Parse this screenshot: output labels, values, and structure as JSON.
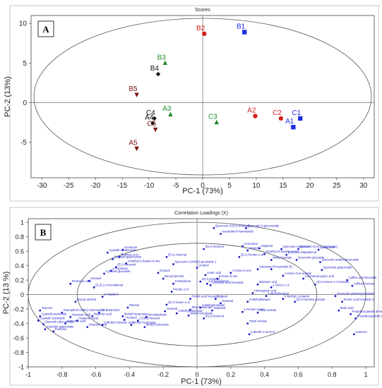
{
  "chart_data": [
    {
      "type": "scatter",
      "panel_label": "A",
      "title": "Scores",
      "xlabel": "PC-1 (73%)",
      "ylabel": "PC-2 (13%)",
      "xlim": [
        -32,
        32
      ],
      "ylim": [
        -9.5,
        11
      ],
      "xticks": [
        -30,
        -25,
        -20,
        -15,
        -10,
        -5,
        0,
        5,
        10,
        15,
        20,
        25,
        30
      ],
      "yticks": [
        -5,
        0,
        5,
        10
      ],
      "points": [
        {
          "label": "B1",
          "x": 7.8,
          "y": 8.9,
          "color": "#1f2ee0",
          "marker": "square"
        },
        {
          "label": "B2",
          "x": 0.3,
          "y": 8.7,
          "color": "#d42020",
          "marker": "circle"
        },
        {
          "label": "B3",
          "x": -7.0,
          "y": 5.0,
          "color": "#1e8a2a",
          "marker": "triangle"
        },
        {
          "label": "B4",
          "x": -8.3,
          "y": 3.6,
          "color": "#111111",
          "marker": "diamond"
        },
        {
          "label": "B5",
          "x": -12.3,
          "y": 1.0,
          "color": "#7a1010",
          "marker": "triangle-down"
        },
        {
          "label": "A3",
          "x": -6.0,
          "y": -1.5,
          "color": "#1e8a2a",
          "marker": "triangle"
        },
        {
          "label": "C3",
          "x": 2.6,
          "y": -2.5,
          "color": "#1e8a2a",
          "marker": "triangle"
        },
        {
          "label": "C4",
          "x": -9.0,
          "y": -2.0,
          "color": "#111111",
          "marker": "diamond"
        },
        {
          "label": "A4",
          "x": -9.3,
          "y": -2.6,
          "color": "#111111",
          "marker": "diamond"
        },
        {
          "label": "C5",
          "x": -8.8,
          "y": -3.4,
          "color": "#7a1010",
          "marker": "triangle-down"
        },
        {
          "label": "A5",
          "x": -12.3,
          "y": -5.8,
          "color": "#7a1010",
          "marker": "triangle-down"
        },
        {
          "label": "A2",
          "x": 9.8,
          "y": -1.7,
          "color": "#d42020",
          "marker": "circle"
        },
        {
          "label": "C2",
          "x": 14.6,
          "y": -2.0,
          "color": "#d42020",
          "marker": "circle"
        },
        {
          "label": "C1",
          "x": 18.2,
          "y": -2.0,
          "color": "#1f2ee0",
          "marker": "square"
        },
        {
          "label": "A1",
          "x": 16.9,
          "y": -3.1,
          "color": "#1f2ee0",
          "marker": "square"
        }
      ]
    },
    {
      "type": "scatter",
      "panel_label": "B",
      "title": "Correlation Loadings (X)",
      "xlabel": "PC-1 (73%)",
      "ylabel": "PC-2 (13 %)",
      "xlim": [
        -1.0,
        1.05
      ],
      "ylim": [
        -1.0,
        1.05
      ],
      "xticks": [
        -1,
        -0.8,
        -0.6,
        -0.4,
        -0.2,
        0,
        0.2,
        0.4,
        0.6,
        0.8,
        1
      ],
      "yticks": [
        -1,
        -0.8,
        -0.6,
        -0.4,
        -0.2,
        0,
        0.2,
        0.4,
        0.6,
        0.8,
        1
      ],
      "ellipses": [
        {
          "rx": 1.0,
          "ry": 1.0
        },
        {
          "rx": 0.71,
          "ry": 0.71
        }
      ],
      "points": [
        {
          "label": "Quercetin-3-(6-O-malonyl)...",
          "x": 0.1,
          "y": 0.92
        },
        {
          "label": "Quercetin-3-glucuronide",
          "x": 0.29,
          "y": 0.92
        },
        {
          "label": "Kaempferol rhamnoside",
          "x": 0.14,
          "y": 0.84
        },
        {
          "label": "(E)-2-Hexenal",
          "x": 0.04,
          "y": 0.63
        },
        {
          "label": "2-Hexenal",
          "x": 0.27,
          "y": 0.67
        },
        {
          "label": "Hexanal",
          "x": 0.3,
          "y": 0.61
        },
        {
          "label": "Heptanol",
          "x": 0.37,
          "y": 0.64
        },
        {
          "label": "Quercetin rutinoside",
          "x": 0.5,
          "y": 0.63
        },
        {
          "label": "Quercetin-(3-O-... pentoside)",
          "x": 0.6,
          "y": 0.63
        },
        {
          "label": "Quinic acid",
          "x": 0.72,
          "y": 0.62
        },
        {
          "label": "(Z)-2-Penten-1-ol",
          "x": 0.25,
          "y": 0.52
        },
        {
          "label": "6-Methyl-5-hepten-2-one",
          "x": 0.4,
          "y": 0.56
        },
        {
          "label": "(E,Z)-2,4-Heptadienal",
          "x": 0.53,
          "y": 0.55
        },
        {
          "label": "Methyl acetate",
          "x": 0.44,
          "y": 0.48
        },
        {
          "label": "Quercetin glucoside",
          "x": 0.59,
          "y": 0.48
        },
        {
          "label": "1-Octen-3-one",
          "x": 0.2,
          "y": 0.3
        },
        {
          "label": "5-Octen-3-one",
          "x": 0.12,
          "y": 0.22
        },
        {
          "label": "Sulcatone",
          "x": 0.36,
          "y": 0.35
        },
        {
          "label": "Procyanidin B1",
          "x": 0.44,
          "y": 0.35
        },
        {
          "label": "1-Octen-3-ol acetate",
          "x": 0.51,
          "y": 0.26
        },
        {
          "label": "Butanoic acid",
          "x": 0.36,
          "y": 0.14
        },
        {
          "label": "1-Octen-1-ol",
          "x": 0.44,
          "y": 0.1
        },
        {
          "label": "Chlorogenic acid",
          "x": 0.33,
          "y": 0.02
        },
        {
          "label": "3-Methylbutanal",
          "x": 0.41,
          "y": -0.02
        },
        {
          "label": "3-Methyl-1-butanol",
          "x": 0.51,
          "y": -0.06
        },
        {
          "label": "2-Methylbutanal",
          "x": 0.3,
          "y": -0.1
        },
        {
          "label": "(Z)-2-Hexenyl acetate",
          "x": 0.58,
          "y": -0.1
        },
        {
          "label": "Catechin",
          "x": 0.93,
          "y": -0.55
        },
        {
          "label": "Quercetin arabinofuranoside",
          "x": 0.73,
          "y": 0.45
        },
        {
          "label": "Quercetin galactoside",
          "x": 0.74,
          "y": 0.34
        },
        {
          "label": "Coumaroyl-quinic acid",
          "x": 0.63,
          "y": 0.22
        },
        {
          "label": "(E)-2-Hexen-1-ol acetate",
          "x": 0.7,
          "y": 0.14
        },
        {
          "label": "Caffeic acid hexoside",
          "x": 0.89,
          "y": 0.2
        },
        {
          "label": "Caffeoyl hexose",
          "x": 0.92,
          "y": 0.12
        },
        {
          "label": "Quercetin arabinopyranoside",
          "x": 0.82,
          "y": -0.02
        },
        {
          "label": "Ferulic acid hexoside 2",
          "x": 0.86,
          "y": -0.1
        },
        {
          "label": "Malic acid",
          "x": 0.84,
          "y": -0.22
        },
        {
          "label": "Proanthocyanidin dimer A",
          "x": 0.91,
          "y": -0.27
        },
        {
          "label": "Proanthocyanidin dimer B",
          "x": 0.94,
          "y": -0.33
        },
        {
          "label": "Linalool",
          "x": 0.0,
          "y": 0.37
        },
        {
          "label": "(E)-2-Octenal",
          "x": 0.02,
          "y": 0.18
        },
        {
          "label": "2,4-Hexadienal",
          "x": 0.06,
          "y": 0.15
        },
        {
          "label": "Coumaric acid hexoside",
          "x": 0.08,
          "y": 0.13
        },
        {
          "label": "Acetic acid",
          "x": 0.05,
          "y": 0.27
        },
        {
          "label": "Octanal",
          "x": 0.11,
          "y": -0.06
        },
        {
          "label": "Nonanal",
          "x": 0.14,
          "y": -0.12
        },
        {
          "label": "1-Penten-3-one",
          "x": 0.27,
          "y": -0.24
        },
        {
          "label": "Ethyl acetate",
          "x": 0.36,
          "y": -0.25
        },
        {
          "label": "Hexyl acetate",
          "x": 0.3,
          "y": -0.4
        },
        {
          "label": "p-Menth-1-en-8-ol",
          "x": 0.31,
          "y": -0.55
        },
        {
          "label": "Heptanal",
          "x": 0.09,
          "y": -0.22
        },
        {
          "label": "2-Methylpropanal",
          "x": 0.02,
          "y": -0.18
        },
        {
          "label": "Ethyl butanoate",
          "x": -0.04,
          "y": -0.21
        },
        {
          "label": "(Z)-3-Hexen-1-ol",
          "x": -0.18,
          "y": -0.14
        },
        {
          "label": "Hexanal",
          "x": -0.19,
          "y": -0.23
        },
        {
          "label": "2-Methylbutanoate",
          "x": -0.12,
          "y": -0.26
        },
        {
          "label": "Methyl butanoate",
          "x": -0.05,
          "y": -0.29
        },
        {
          "label": "(E)-2-Nonenal",
          "x": 0.04,
          "y": -0.33
        },
        {
          "label": "Ferulic acid hexoside 1",
          "x": -0.04,
          "y": -0.06
        },
        {
          "label": "Pentan-1-ol",
          "x": -0.15,
          "y": 0.04
        },
        {
          "label": "2-Ethylfuran",
          "x": -0.14,
          "y": 0.15
        },
        {
          "label": "(E)-2-Hexenal",
          "x": -0.18,
          "y": 0.52
        },
        {
          "label": "Quercetin-3-(HMG)-pentoside 1",
          "x": -0.14,
          "y": 0.42
        },
        {
          "label": "Benzyl alcohol",
          "x": -0.2,
          "y": 0.22
        },
        {
          "label": "Octanol",
          "x": -0.23,
          "y": 0.3
        },
        {
          "label": "2-Methyl-2-hepten-6-one",
          "x": -0.42,
          "y": 0.43
        },
        {
          "label": "(E)-3-Hexenol",
          "x": -0.48,
          "y": 0.38
        },
        {
          "label": "γ-Terpinene",
          "x": -0.51,
          "y": 0.33
        },
        {
          "label": "Cyanidin glucoside",
          "x": -0.55,
          "y": 0.29
        },
        {
          "label": "Cyanidin arabinoside",
          "x": -0.53,
          "y": 0.58
        },
        {
          "label": "Terpinen-4-ol",
          "x": -0.46,
          "y": 0.52
        },
        {
          "label": "Limonene",
          "x": -0.44,
          "y": 0.62
        },
        {
          "label": "Cyanidin galactoside",
          "x": -0.5,
          "y": 0.49
        },
        {
          "label": "Pentanoic acid",
          "x": -0.75,
          "y": 0.15
        },
        {
          "label": "Hexanol",
          "x": -0.64,
          "y": 0.19
        },
        {
          "label": "(E,Z)-2,4-Hexadienal",
          "x": -0.61,
          "y": 0.1
        },
        {
          "label": "2-Heptanol",
          "x": -0.56,
          "y": -0.03
        },
        {
          "label": "Benzyl alcohol",
          "x": -0.72,
          "y": -0.1
        },
        {
          "label": "Kaempferol (HMG) rhamnoside",
          "x": -0.8,
          "y": -0.25
        },
        {
          "label": "Hexanoic acid",
          "x": -0.75,
          "y": -0.31
        },
        {
          "label": "Heptanoic acid",
          "x": -0.71,
          "y": -0.36
        },
        {
          "label": "Nonanoic acid",
          "x": -0.78,
          "y": -0.4
        },
        {
          "label": "Octanoic acid",
          "x": -0.65,
          "y": -0.45
        },
        {
          "label": "Fructose",
          "x": -0.85,
          "y": -0.51
        },
        {
          "label": "Glucose",
          "x": -0.93,
          "y": -0.22
        },
        {
          "label": "Cyanidin pentoside",
          "x": -0.93,
          "y": -0.3
        },
        {
          "label": "Cyanidin rutinoside",
          "x": -0.94,
          "y": -0.36
        },
        {
          "label": "Quercetin glucuronide",
          "x": -0.91,
          "y": -0.41
        },
        {
          "label": "Cyanidin galactoside",
          "x": -0.9,
          "y": -0.48
        },
        {
          "label": "1,3-Butanediol",
          "x": -0.58,
          "y": -0.25
        },
        {
          "label": "Butanoic acid",
          "x": -0.62,
          "y": -0.3
        },
        {
          "label": "2-Methyl butanoic acid",
          "x": -0.56,
          "y": -0.42
        },
        {
          "label": "Methyl hexanoate",
          "x": -0.44,
          "y": -0.3
        },
        {
          "label": "Hexanol",
          "x": -0.43,
          "y": -0.35
        },
        {
          "label": "Ethanol",
          "x": -0.41,
          "y": -0.18
        },
        {
          "label": "Benzaldehyde",
          "x": -0.3,
          "y": -0.31
        },
        {
          "label": "2-Ethyl hexanol",
          "x": -0.35,
          "y": -0.36
        },
        {
          "label": "Methyl hexanoate",
          "x": -0.39,
          "y": -0.42
        },
        {
          "label": "Methyl butanoate",
          "x": -0.31,
          "y": -0.45
        }
      ]
    }
  ]
}
